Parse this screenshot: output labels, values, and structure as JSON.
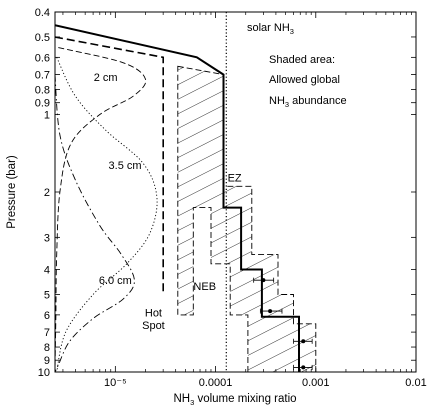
{
  "chart_data": {
    "type": "line",
    "xlabel": {
      "pre": "NH",
      "sub": "3",
      "post": " volume mixing ratio"
    },
    "ylabel": "Pressure (bar)",
    "xscale": "log",
    "yscale": "log",
    "yaxis_inverted": true,
    "xlim": [
      2.5e-06,
      0.01
    ],
    "ylim": [
      0.4,
      10
    ],
    "x_ticks": [
      {
        "value": 1e-05,
        "label": "10⁻⁵"
      },
      {
        "value": 0.0001,
        "label": "0.0001"
      },
      {
        "value": 0.001,
        "label": "0.001"
      },
      {
        "value": 0.01,
        "label": "0.01"
      }
    ],
    "y_ticks": [
      {
        "value": 0.4,
        "label": "0.4"
      },
      {
        "value": 0.5,
        "label": "0.5"
      },
      {
        "value": 0.6,
        "label": "0.6"
      },
      {
        "value": 0.7,
        "label": "0.7"
      },
      {
        "value": 0.8,
        "label": "0.8"
      },
      {
        "value": 0.9,
        "label": "0.9"
      },
      {
        "value": 1,
        "label": "1"
      },
      {
        "value": 2,
        "label": "2"
      },
      {
        "value": 3,
        "label": "3"
      },
      {
        "value": 4,
        "label": "4"
      },
      {
        "value": 5,
        "label": "5"
      },
      {
        "value": 6,
        "label": "6"
      },
      {
        "value": 7,
        "label": "7"
      },
      {
        "value": 8,
        "label": "8"
      },
      {
        "value": 9,
        "label": "9"
      },
      {
        "value": 10,
        "label": "10"
      }
    ],
    "series": [
      {
        "style": "solid-thick",
        "points": [
          [
            2.5e-06,
            0.45
          ],
          [
            6.5e-05,
            0.6
          ],
          [
            0.00012,
            0.7
          ],
          [
            0.00012,
            2.3
          ],
          [
            0.00018,
            2.3
          ],
          [
            0.00018,
            4.0
          ],
          [
            0.00029,
            4.0
          ],
          [
            0.00029,
            6.1
          ],
          [
            0.00068,
            6.1
          ],
          [
            0.00068,
            10
          ]
        ]
      },
      {
        "style": "dashed-thick",
        "points": [
          [
            2.5e-06,
            0.5
          ],
          [
            3e-05,
            0.6
          ],
          [
            3e-05,
            5.0
          ]
        ]
      },
      {
        "style": "dotted",
        "points": [
          [
            0.000128,
            0.4
          ],
          [
            0.000128,
            10
          ]
        ]
      }
    ],
    "shaded_region": {
      "pattern": "diagonal-hatch",
      "outline": [
        [
          4.2e-05,
          0.65
        ],
        [
          0.00012,
          0.7
        ],
        [
          0.00012,
          1.9
        ],
        [
          0.00023,
          1.9
        ],
        [
          0.00023,
          3.5
        ],
        [
          0.00042,
          3.5
        ],
        [
          0.00042,
          5.0
        ],
        [
          0.0006,
          5.0
        ],
        [
          0.0006,
          6.5
        ],
        [
          0.001,
          6.5
        ],
        [
          0.001,
          10
        ],
        [
          0.00021,
          10
        ],
        [
          0.00021,
          6.0
        ],
        [
          0.00014,
          6.0
        ],
        [
          0.00014,
          3.8
        ],
        [
          9e-05,
          3.8
        ],
        [
          9e-05,
          2.3
        ],
        [
          6e-05,
          2.3
        ],
        [
          6e-05,
          6.0
        ],
        [
          4.2e-05,
          6.0
        ]
      ]
    },
    "weighting_functions": [
      {
        "label": "2 cm",
        "style": "dashed",
        "points": [
          [
            2.7e-06,
            0.55
          ],
          [
            1.2e-05,
            0.63
          ],
          [
            2e-05,
            0.73
          ],
          [
            1.5e-05,
            0.85
          ],
          [
            7e-06,
            1.0
          ],
          [
            3.6e-06,
            1.3
          ],
          [
            2.8e-06,
            2.0
          ],
          [
            2.6e-06,
            3.5
          ],
          [
            2.55e-06,
            6.0
          ],
          [
            2.5e-06,
            10
          ]
        ]
      },
      {
        "label": "3.5 cm",
        "style": "dotted",
        "points": [
          [
            2.6e-06,
            0.6
          ],
          [
            4e-06,
            0.85
          ],
          [
            8e-06,
            1.15
          ],
          [
            1.9e-05,
            1.55
          ],
          [
            2.6e-05,
            2.1
          ],
          [
            2.2e-05,
            2.9
          ],
          [
            1.3e-05,
            3.8
          ],
          [
            6e-06,
            5.0
          ],
          [
            3.2e-06,
            7.0
          ],
          [
            2.6e-06,
            10
          ]
        ]
      },
      {
        "label": "6.0 cm",
        "style": "dash-dot",
        "points": [
          [
            2.5e-06,
            0.7
          ],
          [
            2.8e-06,
            1.2
          ],
          [
            4e-06,
            1.8
          ],
          [
            7e-06,
            2.7
          ],
          [
            1.15e-05,
            3.5
          ],
          [
            1.55e-05,
            4.4
          ],
          [
            1.2e-05,
            5.2
          ],
          [
            6e-06,
            6.2
          ],
          [
            3.5e-06,
            7.6
          ],
          [
            2.7e-06,
            9.4
          ],
          [
            2.5e-06,
            10
          ]
        ]
      }
    ],
    "data_points": [
      {
        "x": 0.0003,
        "y": 4.4,
        "xerr": [
          0.00024,
          0.00038
        ]
      },
      {
        "x": 0.00035,
        "y": 5.8,
        "xerr": [
          0.00028,
          0.00046
        ]
      },
      {
        "x": 0.00075,
        "y": 7.6,
        "xerr": [
          0.0006,
          0.00092
        ]
      },
      {
        "x": 0.00075,
        "y": 9.6,
        "xerr": [
          0.0006,
          0.00092
        ]
      }
    ],
    "annotations": [
      {
        "text": "2 cm",
        "x": 8e-06,
        "y": 0.74
      },
      {
        "text": "3.5 cm",
        "x": 1.25e-05,
        "y": 1.63
      },
      {
        "text": "6.0 cm",
        "x": 1e-05,
        "y": 4.55
      },
      {
        "text": "EZ",
        "x": 0.000155,
        "y": 1.82
      },
      {
        "text": "NEB",
        "x": 7.8e-05,
        "y": 4.8
      },
      {
        "text": "Hot",
        "x": 2.4e-05,
        "y": 6.1
      },
      {
        "text": "Spot",
        "x": 2.4e-05,
        "y": 6.8
      }
    ],
    "solar_label": {
      "pre": "solar NH",
      "sub": "3"
    },
    "shaded_caption": {
      "line1": "Shaded area:",
      "line2": "Allowed global",
      "line3_pre": "NH",
      "line3_sub": "3",
      "line3_post": " abundance"
    }
  }
}
